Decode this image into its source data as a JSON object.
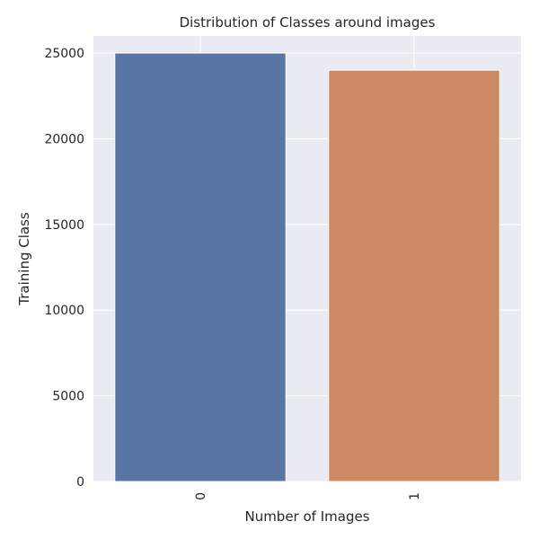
{
  "chart_data": {
    "type": "bar",
    "title": "Distribution of Classes around images",
    "xlabel": "Number of Images",
    "ylabel": "Training Class",
    "categories": [
      "0",
      "1"
    ],
    "values": [
      25000,
      24000
    ],
    "bar_colors": [
      "#5875a4",
      "#cc8963"
    ],
    "ylim": [
      0,
      26000
    ],
    "yticks": [
      0,
      5000,
      10000,
      15000,
      20000,
      25000
    ],
    "ytick_labels": [
      "0",
      "5000",
      "10000",
      "15000",
      "20000",
      "25000"
    ],
    "grid": true,
    "background": "#eaeaf2",
    "grid_color": "#ffffff",
    "xtick_rotation": "vertical"
  }
}
